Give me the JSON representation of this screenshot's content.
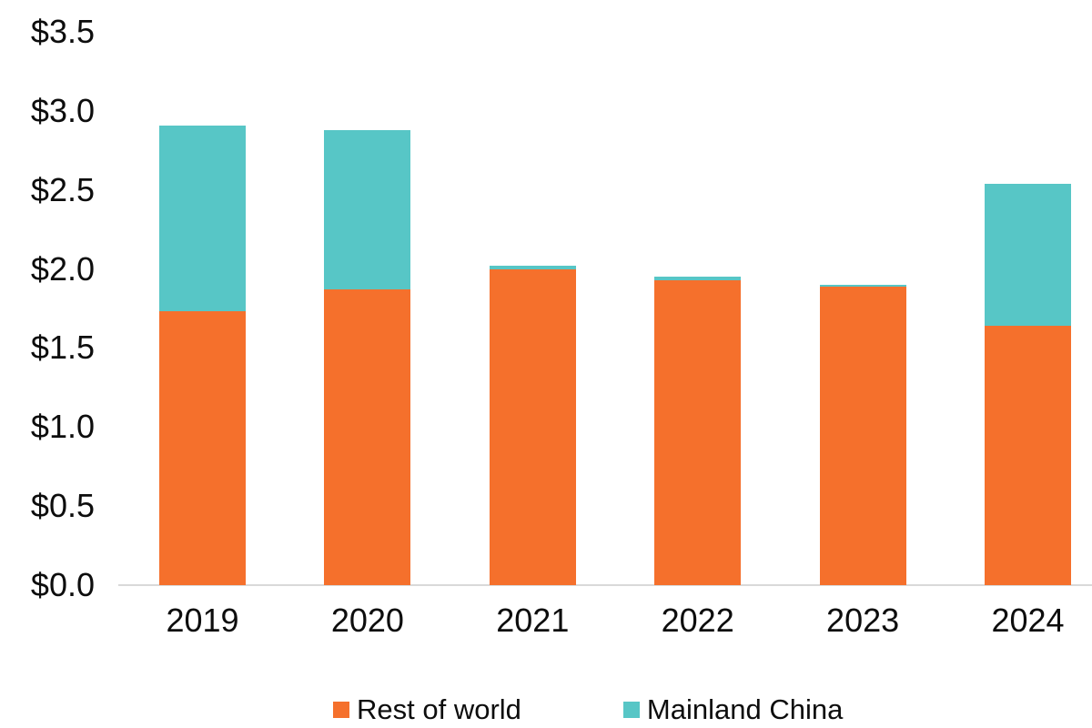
{
  "chart_data": {
    "type": "bar",
    "stacked": true,
    "title": "",
    "xlabel": "",
    "ylabel": "",
    "categories": [
      "2019",
      "2020",
      "2021",
      "2022",
      "2023",
      "2024"
    ],
    "series": [
      {
        "name": "Rest of world",
        "color": "#f5702c",
        "values": [
          1.73,
          1.87,
          2.0,
          1.93,
          1.89,
          1.64
        ]
      },
      {
        "name": "Mainland China",
        "color": "#57c6c6",
        "values": [
          1.18,
          1.01,
          0.02,
          0.02,
          0.01,
          0.9
        ]
      }
    ],
    "totals": [
      2.91,
      2.88,
      2.02,
      1.95,
      1.9,
      2.54
    ],
    "ylim": [
      0,
      3.5
    ],
    "ytick_step": 0.5,
    "ytick_labels": [
      "$0.0",
      "$0.5",
      "$1.0",
      "$1.5",
      "$2.0",
      "$2.5",
      "$3.0",
      "$3.5"
    ],
    "grid": false,
    "legend_position": "bottom",
    "axis_line_color": "#d9d9d9",
    "text_color": "#0d0d0d",
    "background_color": "#ffffff"
  }
}
